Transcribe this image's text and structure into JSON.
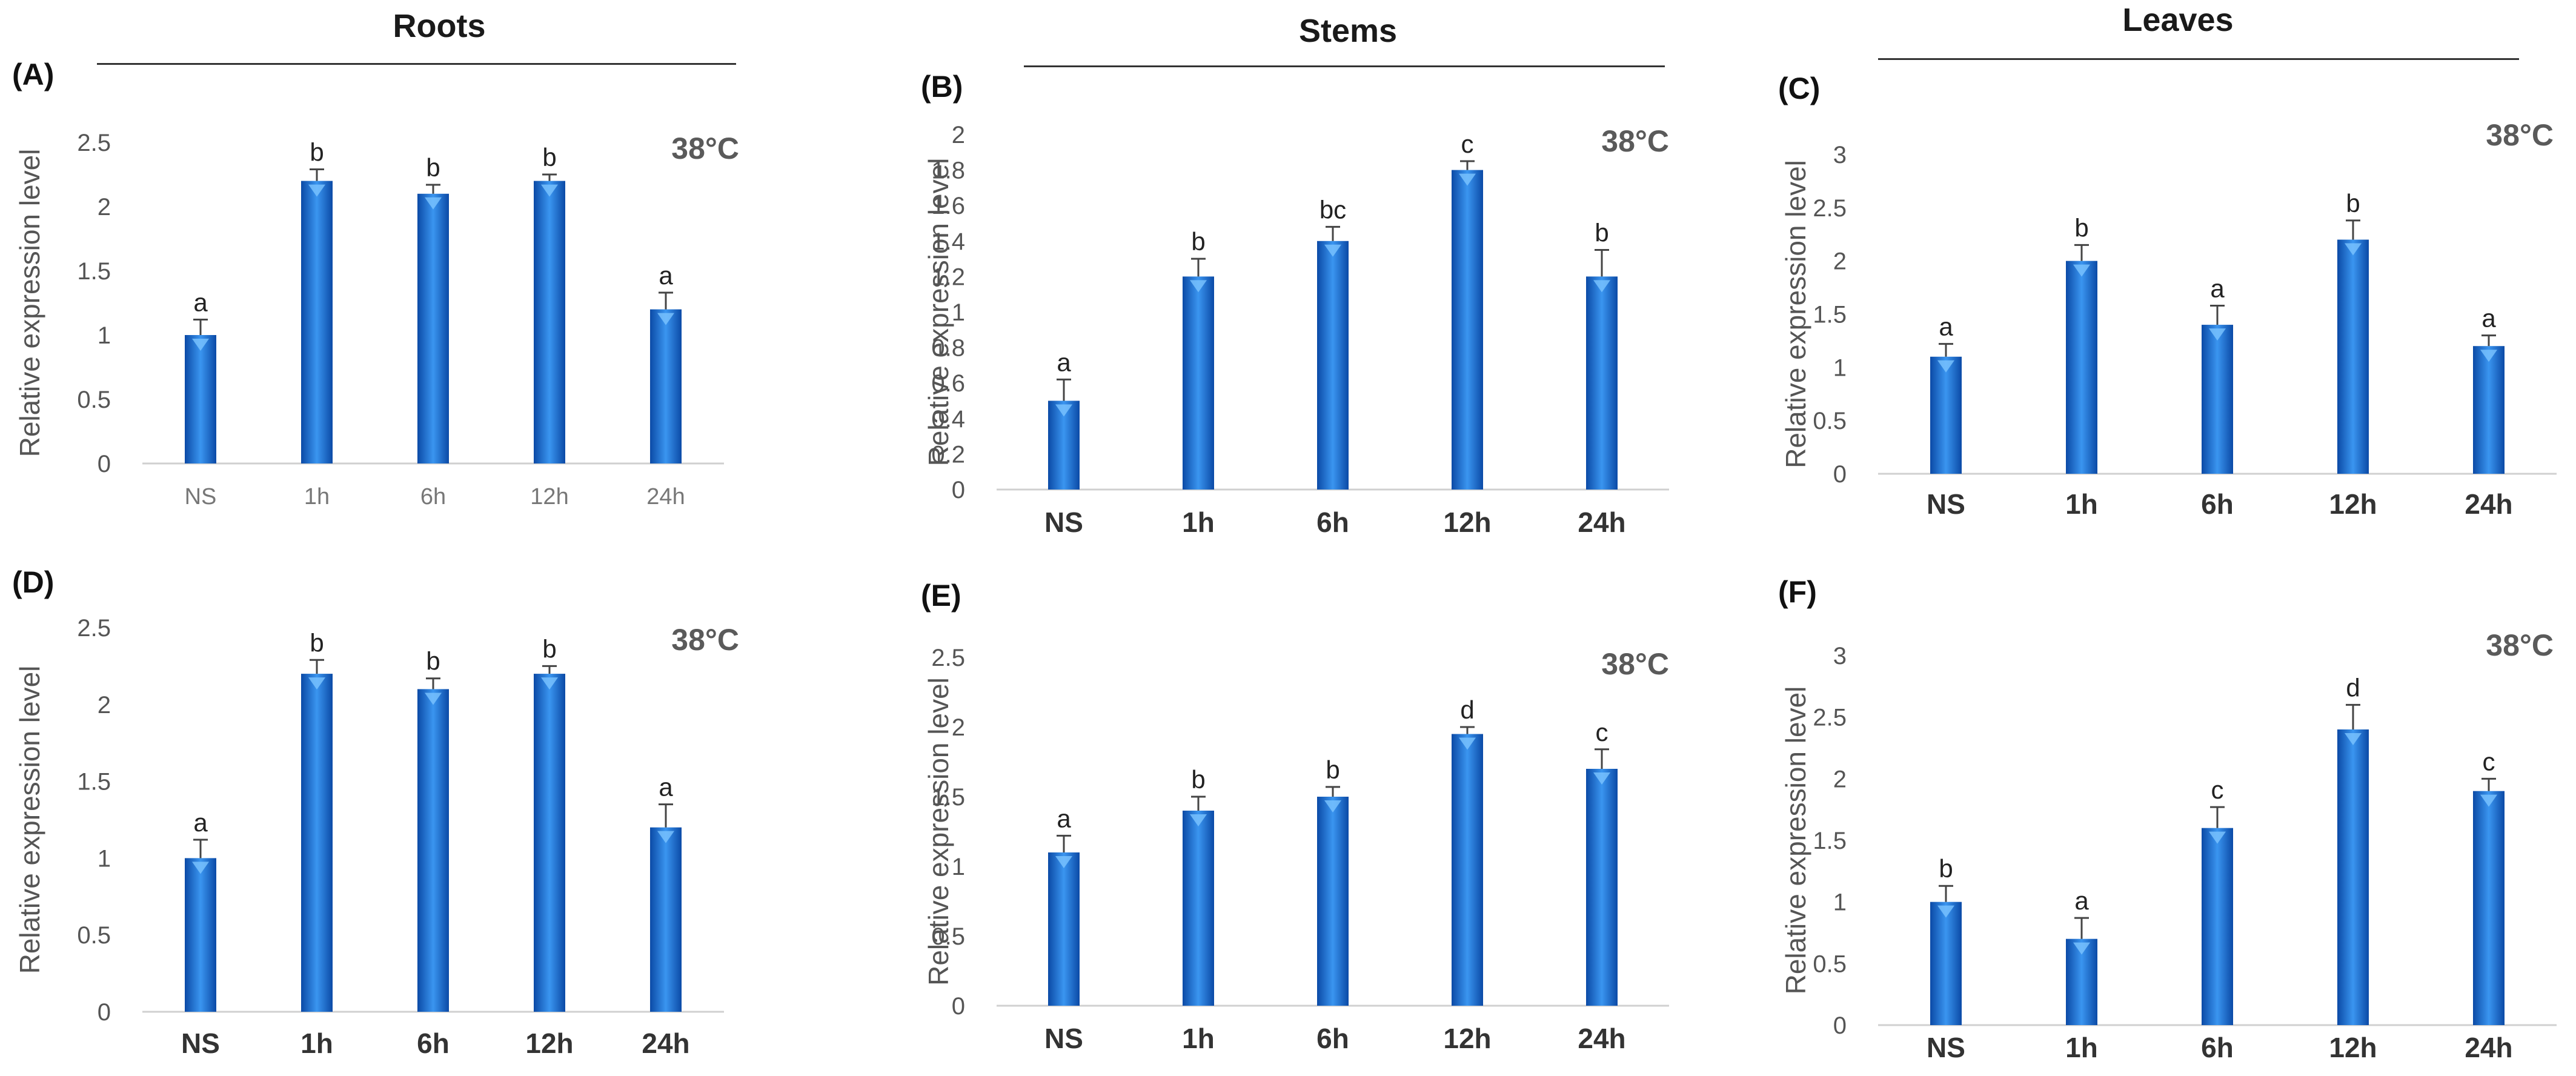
{
  "column_headers": [
    "Roots",
    "Stems",
    "Leaves"
  ],
  "colors": {
    "bar_dark": "#0b4aa6",
    "bar_mid": "#1f78e0",
    "bar_light": "#3a95f0",
    "axis": "#d0d0d0",
    "text": "#555555",
    "error": "#444444",
    "letter": "#222222"
  },
  "chart_data": [
    {
      "panel": "(A)",
      "type": "bar",
      "temperature": "38°C",
      "ylabel": "Relative expression level",
      "ylim": [
        0,
        2.5
      ],
      "yticks": [
        "0",
        "0.5",
        "1",
        "1.5",
        "2",
        "2.5"
      ],
      "categories": [
        "NS",
        "1h",
        "6h",
        "12h",
        "24h"
      ],
      "values": [
        1.0,
        2.2,
        2.1,
        2.2,
        1.2
      ],
      "errors": [
        0.12,
        0.09,
        0.07,
        0.05,
        0.13
      ],
      "letters": [
        "a",
        "b",
        "b",
        "b",
        "a"
      ]
    },
    {
      "panel": "(B)",
      "type": "bar",
      "temperature": "38°C",
      "ylabel": "Relative expression level",
      "ylim": [
        0,
        2
      ],
      "yticks": [
        "0",
        "0.2",
        "0.4",
        "0.6",
        "0.8",
        "1",
        "1.2",
        "1.4",
        "1.6",
        "1.8",
        "2"
      ],
      "categories": [
        "NS",
        "1h",
        "6h",
        "12h",
        "24h"
      ],
      "values": [
        0.5,
        1.2,
        1.4,
        1.8,
        1.2
      ],
      "errors": [
        0.12,
        0.1,
        0.08,
        0.05,
        0.15
      ],
      "letters": [
        "a",
        "b",
        "bc",
        "c",
        "b"
      ]
    },
    {
      "panel": "(C)",
      "type": "bar",
      "temperature": "38°C",
      "ylabel": "Relative expression level",
      "ylim": [
        0,
        3
      ],
      "yticks": [
        "0",
        "0.5",
        "1",
        "1.5",
        "2",
        "2.5",
        "3"
      ],
      "categories": [
        "NS",
        "1h",
        "6h",
        "12h",
        "24h"
      ],
      "values": [
        1.1,
        2.0,
        1.4,
        2.2,
        1.2
      ],
      "errors": [
        0.12,
        0.15,
        0.18,
        0.18,
        0.1
      ],
      "letters": [
        "a",
        "b",
        "a",
        "b",
        "a"
      ]
    },
    {
      "panel": "(D)",
      "type": "bar",
      "temperature": "38°C",
      "ylabel": "Relative expression level",
      "ylim": [
        0,
        2.5
      ],
      "yticks": [
        "0",
        "0.5",
        "1",
        "1.5",
        "2",
        "2.5"
      ],
      "categories": [
        "NS",
        "1h",
        "6h",
        "12h",
        "24h"
      ],
      "values": [
        1.0,
        2.2,
        2.1,
        2.2,
        1.2
      ],
      "errors": [
        0.12,
        0.09,
        0.07,
        0.05,
        0.15
      ],
      "letters": [
        "a",
        "b",
        "b",
        "b",
        "a"
      ]
    },
    {
      "panel": "(E)",
      "type": "bar",
      "temperature": "38°C",
      "ylabel": "Relative expression level",
      "ylim": [
        0,
        2.5
      ],
      "yticks": [
        "0",
        "0.5",
        "1",
        "1.5",
        "2",
        "2.5"
      ],
      "categories": [
        "NS",
        "1h",
        "6h",
        "12h",
        "24h"
      ],
      "values": [
        1.1,
        1.4,
        1.5,
        1.95,
        1.7
      ],
      "errors": [
        0.12,
        0.1,
        0.07,
        0.05,
        0.14
      ],
      "letters": [
        "a",
        "b",
        "b",
        "d",
        "c"
      ]
    },
    {
      "panel": "(F)",
      "type": "bar",
      "temperature": "38°C",
      "ylabel": "Relative expression level",
      "ylim": [
        0,
        3
      ],
      "yticks": [
        "0",
        "0.5",
        "1",
        "1.5",
        "2",
        "2.5",
        "3"
      ],
      "categories": [
        "NS",
        "1h",
        "6h",
        "12h",
        "24h"
      ],
      "values": [
        1.0,
        0.7,
        1.6,
        2.4,
        1.9
      ],
      "errors": [
        0.13,
        0.17,
        0.17,
        0.2,
        0.1
      ],
      "letters": [
        "b",
        "a",
        "c",
        "d",
        "c"
      ]
    }
  ]
}
